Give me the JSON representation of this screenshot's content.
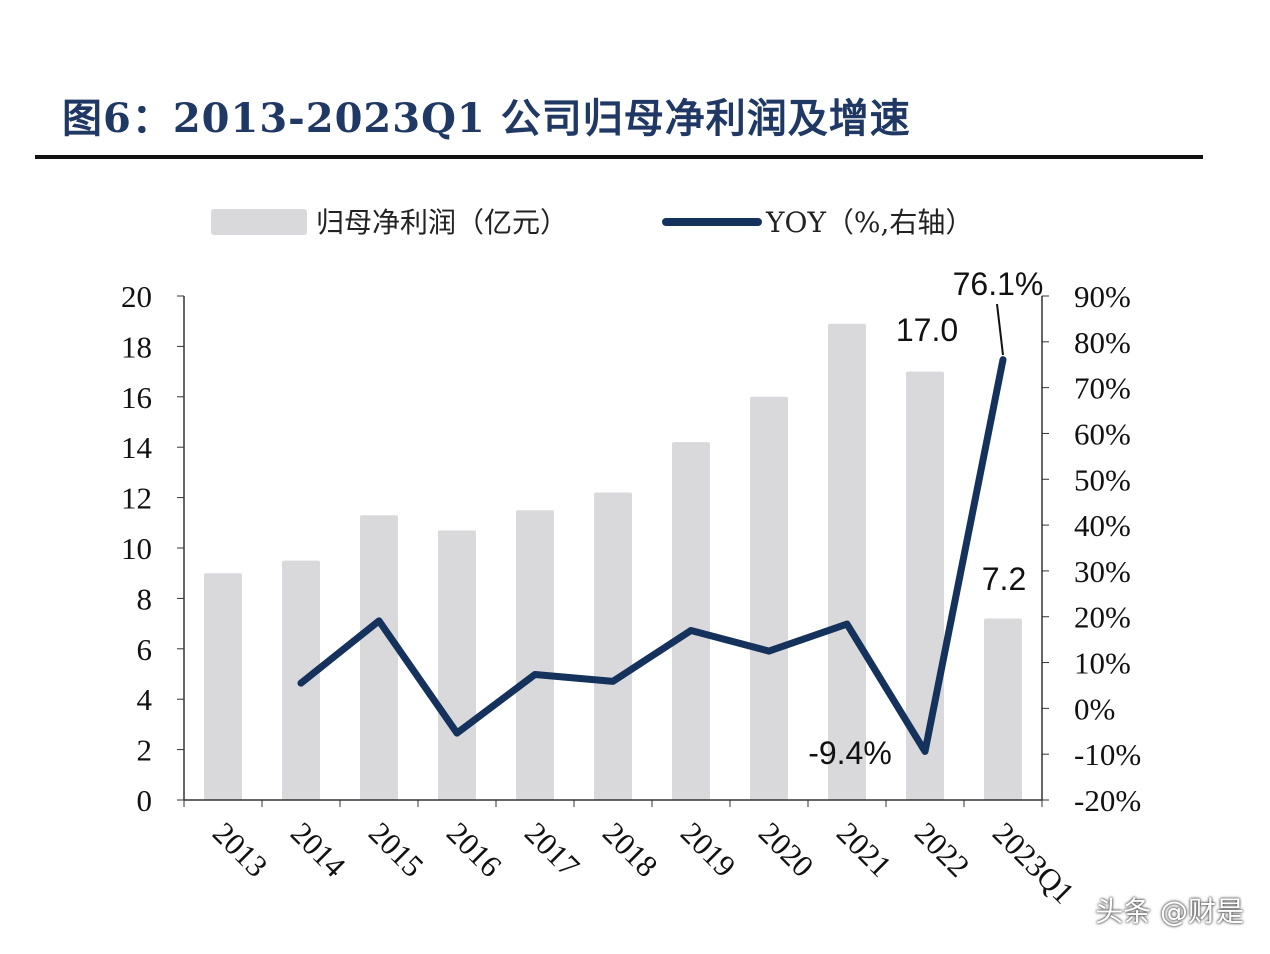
{
  "title": "图6：2013-2023Q1 公司归母净利润及增速",
  "watermark": "头条 @财是",
  "chart_data": {
    "type": "bar+line",
    "categories": [
      "2013",
      "2014",
      "2015",
      "2016",
      "2017",
      "2018",
      "2019",
      "2020",
      "2021",
      "2022",
      "2023Q1"
    ],
    "series": [
      {
        "name": "归母净利润（亿元）",
        "type": "bar",
        "axis": "left",
        "color": "#d9d9db",
        "values": [
          9.0,
          9.5,
          11.3,
          10.7,
          11.5,
          12.2,
          14.2,
          16.0,
          18.9,
          17.0,
          7.2
        ]
      },
      {
        "name": "YOY（%,右轴）",
        "type": "line",
        "axis": "right",
        "color": "#14325c",
        "values": [
          null,
          5.5,
          19.1,
          -5.4,
          7.4,
          5.9,
          17.0,
          12.5,
          18.4,
          -9.4,
          76.1
        ]
      }
    ],
    "left_axis": {
      "ylim": [
        0,
        20
      ],
      "ticks": [
        "0",
        "2",
        "4",
        "6",
        "8",
        "10",
        "12",
        "14",
        "16",
        "18",
        "20"
      ]
    },
    "right_axis": {
      "ylim": [
        -20,
        90
      ],
      "ticks": [
        "-20%",
        "-10%",
        "0%",
        "10%",
        "20%",
        "30%",
        "40%",
        "50%",
        "60%",
        "70%",
        "80%",
        "90%"
      ]
    },
    "annotations": [
      {
        "text": "17.0",
        "category": "2022",
        "series": "bar"
      },
      {
        "text": "7.2",
        "category": "2023Q1",
        "series": "bar"
      },
      {
        "text": "-9.4%",
        "category": "2022",
        "series": "line"
      },
      {
        "text": "76.1%",
        "category": "2023Q1",
        "series": "line"
      }
    ],
    "legend_position": "top",
    "grid": false
  }
}
